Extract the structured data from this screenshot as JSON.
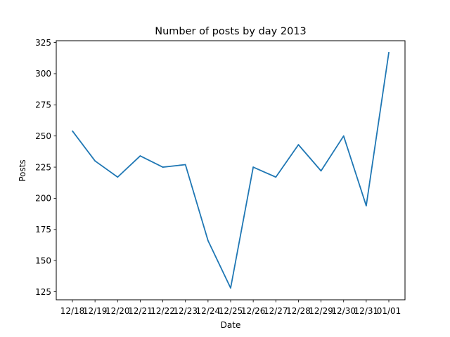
{
  "chart_data": {
    "type": "line",
    "title": "Number of posts by day 2013",
    "xlabel": "Date",
    "ylabel": "Posts",
    "x": [
      "12/18",
      "12/19",
      "12/20",
      "12/21",
      "12/22",
      "12/23",
      "12/24",
      "12/25",
      "12/26",
      "12/27",
      "12/28",
      "12/29",
      "12/30",
      "12/31",
      "01/01"
    ],
    "series": [
      {
        "values": [
          254,
          230,
          217,
          234,
          225,
          227,
          166,
          128,
          225,
          217,
          243,
          222,
          250,
          194,
          317
        ],
        "color": "#1f77b4"
      }
    ],
    "yticks": [
      125,
      150,
      175,
      200,
      225,
      250,
      275,
      300,
      325
    ],
    "ylim": [
      118.55,
      326.45
    ],
    "grid": false,
    "legend": false
  }
}
